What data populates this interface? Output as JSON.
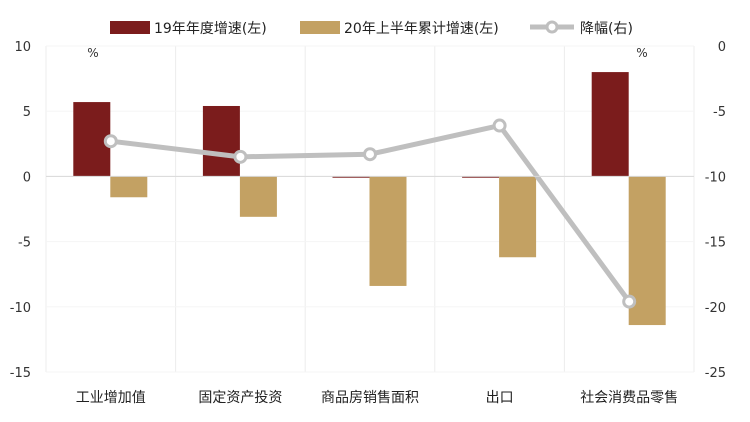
{
  "chart_data": {
    "type": "bar",
    "categories": [
      "工业增加值",
      "固定资产投资",
      "商品房销售面积",
      "出口",
      "社会消费品零售"
    ],
    "series": [
      {
        "name": "19年年度增速(左)",
        "kind": "bar",
        "axis": "left",
        "color": "#7b1c1c",
        "values": [
          5.7,
          5.4,
          -0.1,
          -0.1,
          8.0
        ]
      },
      {
        "name": "20年上半年累计增速(左)",
        "kind": "bar",
        "axis": "left",
        "color": "#c3a163",
        "values": [
          -1.6,
          -3.1,
          -8.4,
          -6.2,
          -11.4
        ]
      },
      {
        "name": "降幅(右)",
        "kind": "line",
        "axis": "right",
        "color": "#bfbfbf",
        "values": [
          -7.3,
          -8.5,
          -8.3,
          -6.1,
          -19.6
        ]
      }
    ],
    "left_axis": {
      "min": -15,
      "max": 10,
      "step": 5,
      "ticks": [
        "-15",
        "-10",
        "-5",
        "0",
        "5",
        "10"
      ],
      "unit": "%"
    },
    "right_axis": {
      "min": -25,
      "max": 0,
      "step": 5,
      "ticks": [
        "-25",
        "-20",
        "-15",
        "-10",
        "-5",
        "0"
      ],
      "unit": "%"
    },
    "legend_position": "top",
    "grid": "light vertical category separators"
  }
}
